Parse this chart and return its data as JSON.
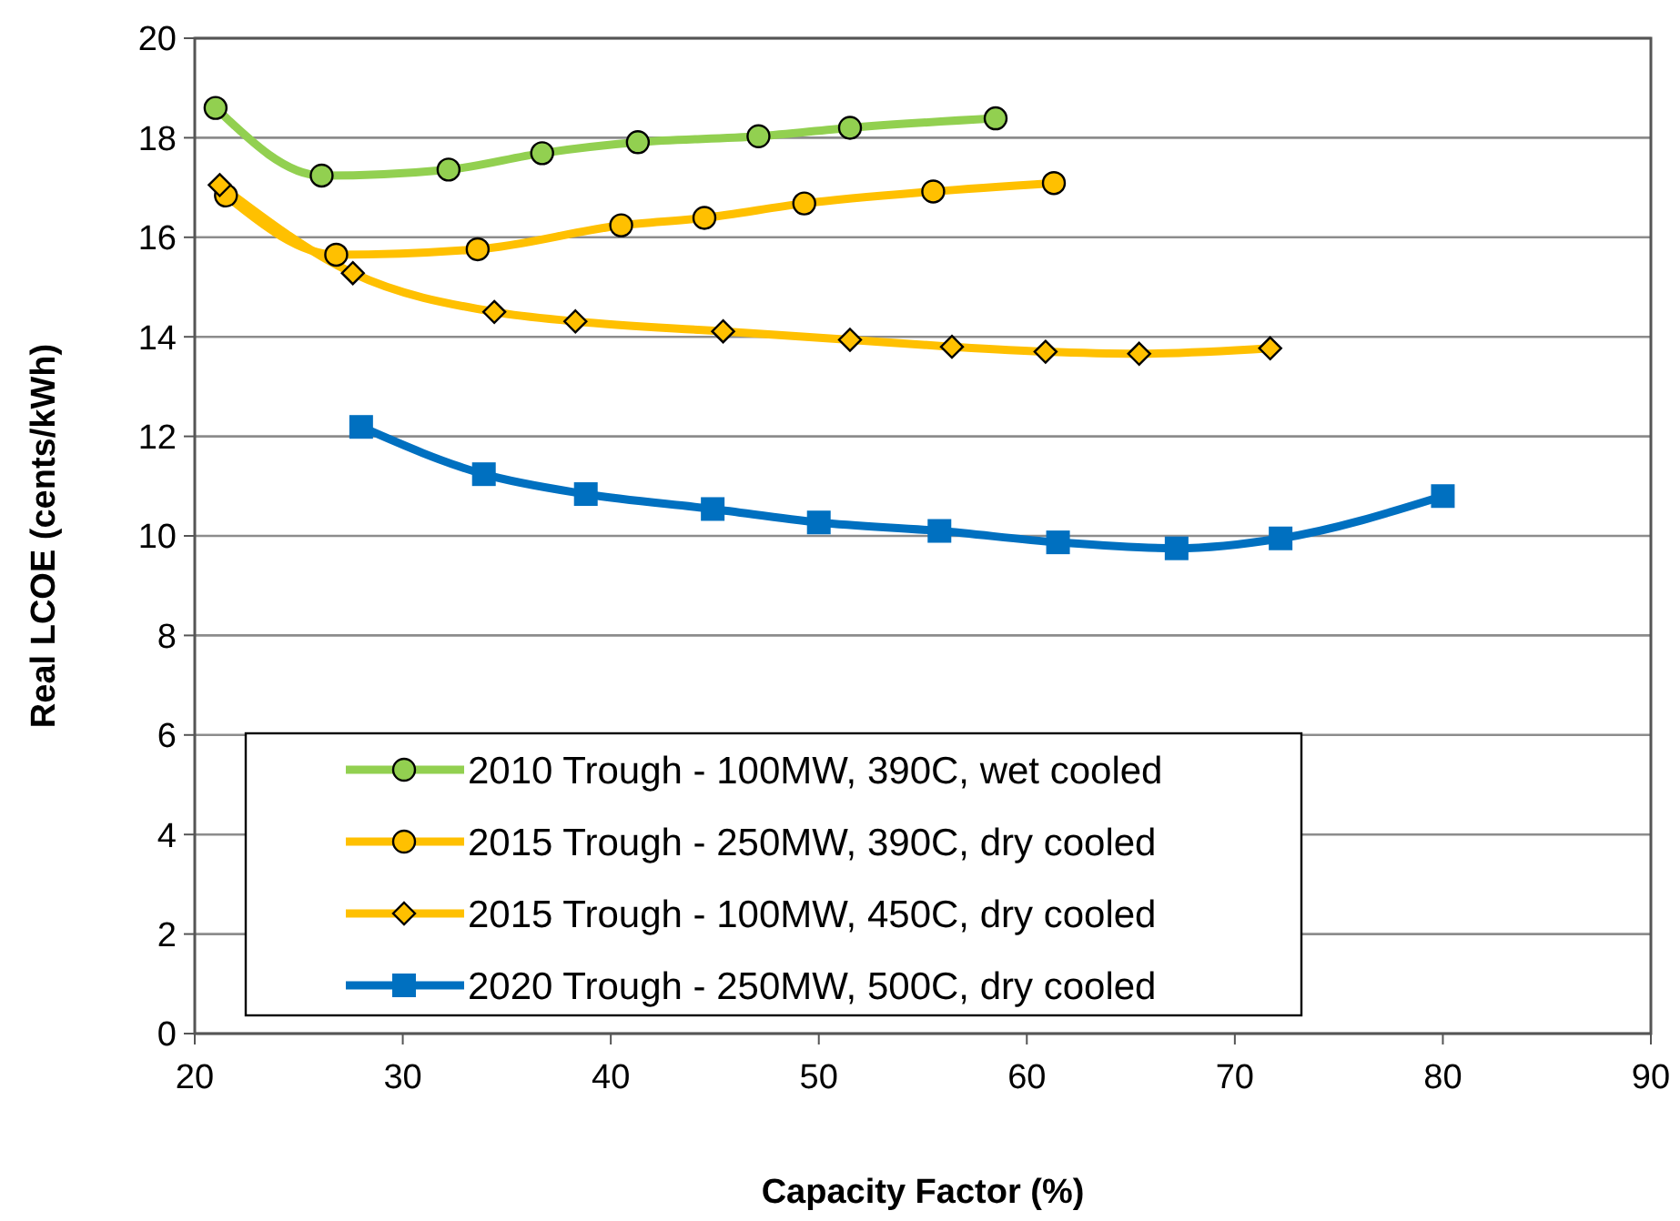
{
  "chart_data": {
    "type": "line",
    "xlabel": "Capacity Factor (%)",
    "ylabel": "Real LCOE (cents/kWh)",
    "xlim": [
      20,
      90
    ],
    "xticks": [
      20,
      30,
      40,
      50,
      60,
      70,
      80,
      90
    ],
    "ylim": [
      0,
      20
    ],
    "yticks": [
      0,
      2,
      4,
      6,
      8,
      10,
      12,
      14,
      16,
      18,
      20
    ],
    "grid": "y",
    "legend": "bottom left",
    "line_style": "solid",
    "series": [
      {
        "name": "2010 Trough - 100MW, 390C, wet cooled",
        "color": "#92d050",
        "marker": "circle",
        "x": [
          21.0,
          26.1,
          32.2,
          36.7,
          41.3,
          47.1,
          51.5,
          58.5
        ],
        "values": [
          18.6,
          17.24,
          17.36,
          17.69,
          17.91,
          18.03,
          18.2,
          18.39
        ]
      },
      {
        "name": "2015 Trough - 250MW, 390C, dry cooled",
        "color": "#ffc000",
        "marker": "circle",
        "x": [
          21.5,
          26.8,
          33.6,
          40.5,
          44.5,
          49.3,
          55.5,
          61.3
        ],
        "values": [
          16.84,
          15.65,
          15.76,
          16.24,
          16.39,
          16.68,
          16.92,
          17.09
        ]
      },
      {
        "name": "2015 Trough - 100MW, 450C, dry cooled",
        "color": "#ffc000",
        "marker": "diamond",
        "x": [
          21.2,
          27.6,
          34.4,
          38.3,
          45.4,
          51.5,
          56.4,
          60.9,
          65.4,
          71.7
        ],
        "values": [
          17.05,
          15.28,
          14.5,
          14.31,
          14.11,
          13.94,
          13.8,
          13.7,
          13.66,
          13.77
        ]
      },
      {
        "name": "2020 Trough - 250MW, 500C, dry cooled",
        "color": "#0070c0",
        "marker": "square",
        "x": [
          28.0,
          33.9,
          38.8,
          44.9,
          50.0,
          55.8,
          61.5,
          67.2,
          72.2,
          80.0
        ],
        "values": [
          12.19,
          11.24,
          10.84,
          10.54,
          10.27,
          10.1,
          9.87,
          9.75,
          9.95,
          10.8
        ]
      }
    ]
  }
}
